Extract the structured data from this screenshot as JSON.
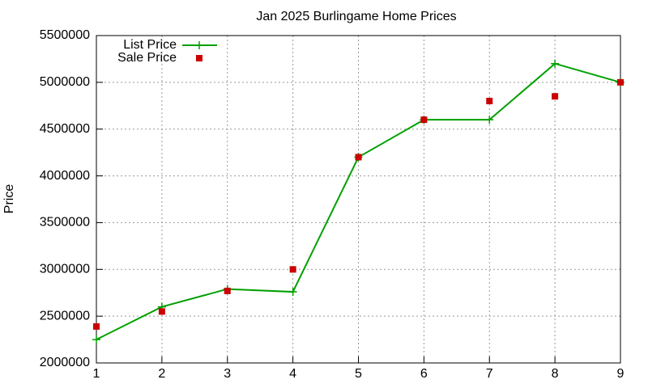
{
  "chart_data": {
    "type": "line",
    "title": "Jan 2025 Burlingame Home Prices",
    "y_label": "Price",
    "x": [
      1,
      2,
      3,
      4,
      5,
      6,
      7,
      8,
      9
    ],
    "series": [
      {
        "name": "List Price",
        "color": "#00a000",
        "style": "linespoints",
        "values": [
          2250000,
          2600000,
          2790000,
          2760000,
          4200000,
          4600000,
          4600000,
          5200000,
          5000000
        ]
      },
      {
        "name": "Sale Price",
        "color": "#cc0000",
        "style": "points",
        "values": [
          2390000,
          2550000,
          2770000,
          3000000,
          4200000,
          4600000,
          4800000,
          4850000,
          5000000
        ]
      }
    ],
    "xlim": [
      1,
      9
    ],
    "xticks": [
      1,
      2,
      3,
      4,
      5,
      6,
      7,
      8,
      9
    ],
    "ylim": [
      2000000,
      5500000
    ],
    "yticks": [
      2000000,
      2500000,
      3000000,
      3500000,
      4000000,
      4500000,
      5000000,
      5500000
    ],
    "grid": true,
    "legend": "top-left"
  }
}
